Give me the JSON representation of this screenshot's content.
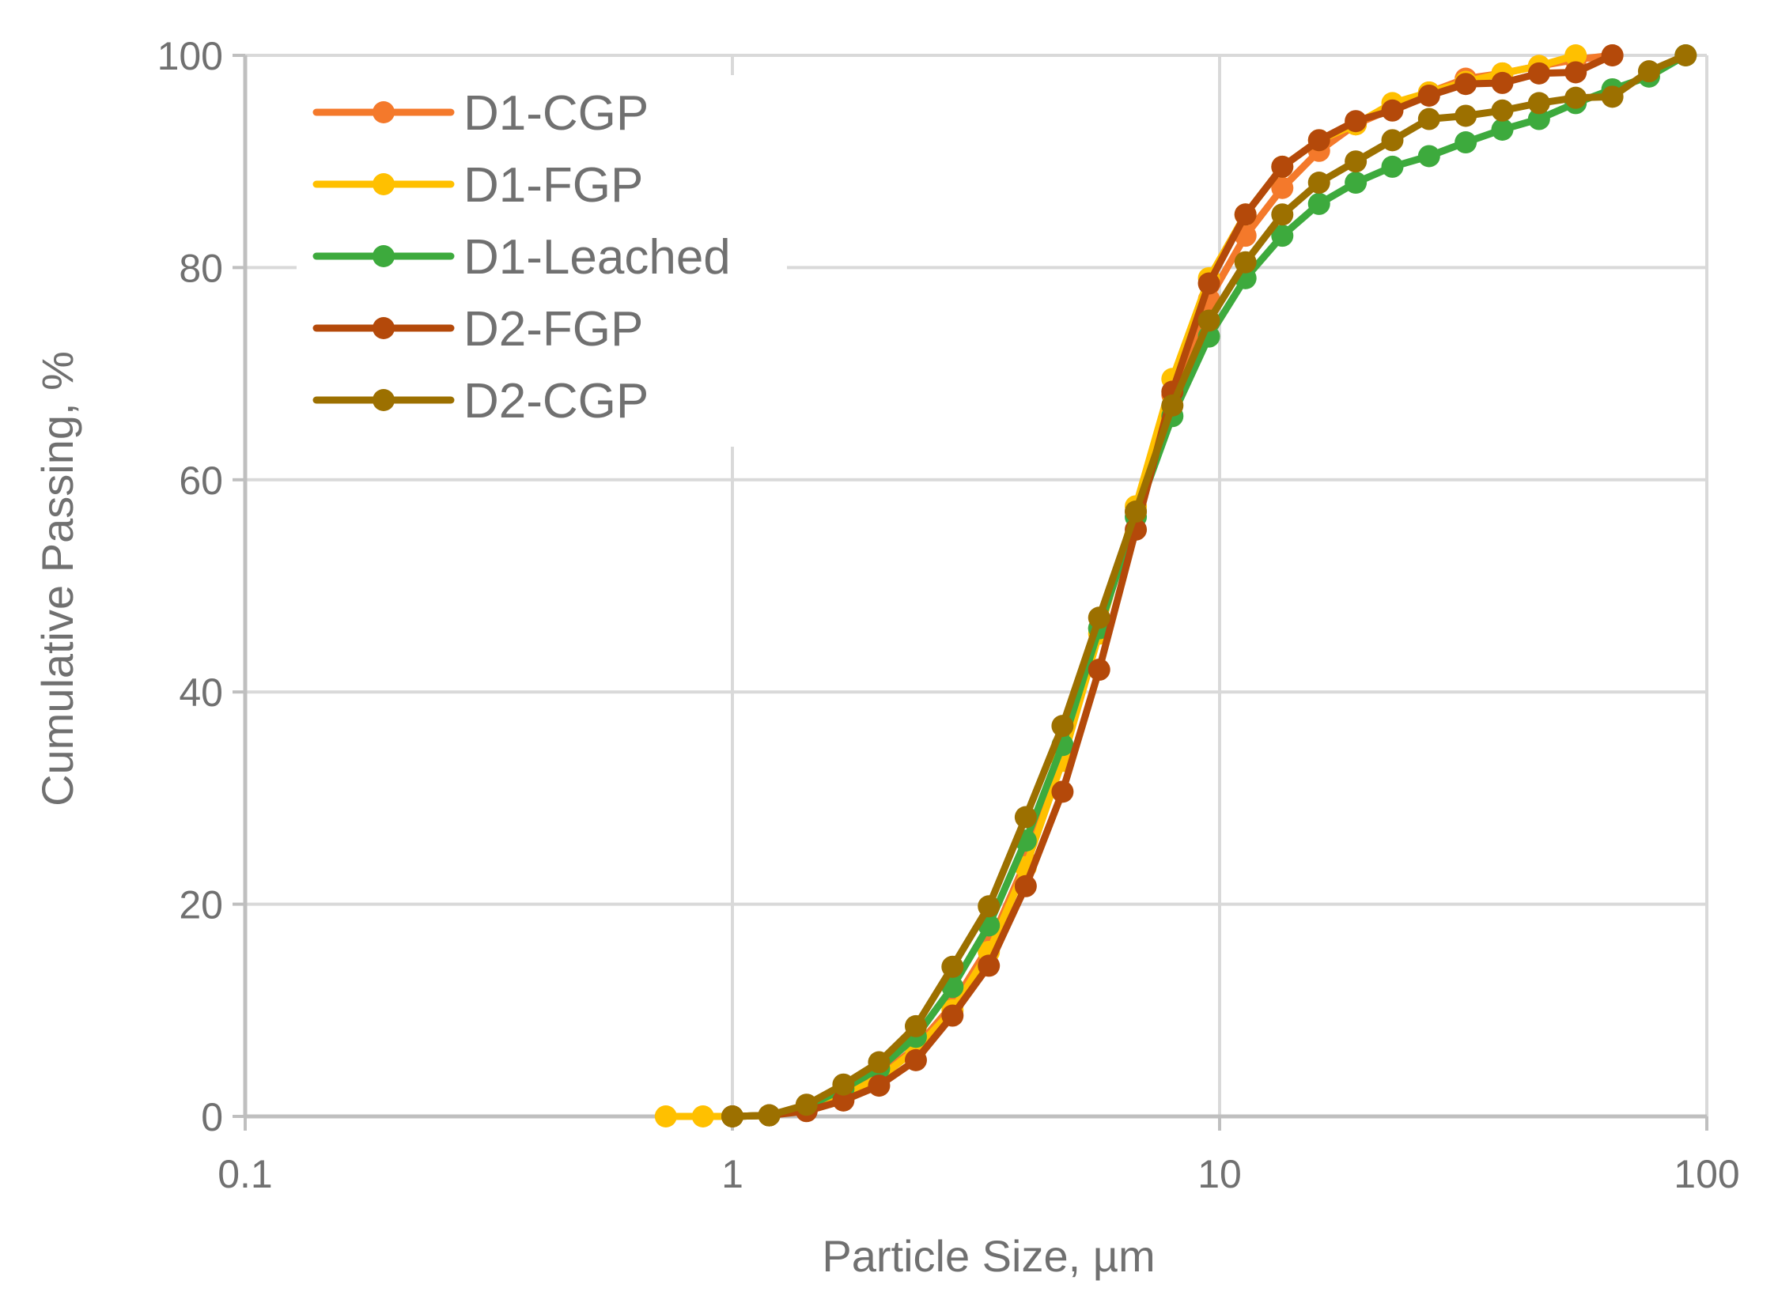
{
  "chart_data": {
    "type": "line",
    "xscale": "log",
    "xlabel": "Particle Size, µm",
    "ylabel": "Cumulative Passing, %",
    "xlim": [
      0.1,
      100
    ],
    "ylim": [
      0,
      100
    ],
    "xticks": [
      {
        "value": 0.1,
        "label": "0.1"
      },
      {
        "value": 1,
        "label": "1"
      },
      {
        "value": 10,
        "label": "10"
      },
      {
        "value": 100,
        "label": "100"
      }
    ],
    "yticks": [
      {
        "value": 0,
        "label": "0"
      },
      {
        "value": 20,
        "label": "20"
      },
      {
        "value": 40,
        "label": "40"
      },
      {
        "value": 60,
        "label": "60"
      },
      {
        "value": 80,
        "label": "80"
      },
      {
        "value": 100,
        "label": "100"
      }
    ],
    "grid": true,
    "legend_position": "top-left",
    "series": [
      {
        "name": "D1-CGP",
        "color": "#F4792B",
        "x": [
          1.0,
          1.19,
          1.42,
          1.69,
          2.0,
          2.38,
          2.83,
          3.36,
          4.0,
          4.76,
          5.66,
          6.73,
          8.0,
          9.51,
          11.3,
          13.45,
          16.0,
          19.03,
          22.63,
          26.91,
          32.0,
          38.05,
          45.25,
          53.81,
          64.0
        ],
        "y": [
          0,
          0.1,
          0.6,
          2.0,
          3.8,
          6.5,
          10.5,
          16.0,
          24.0,
          34.0,
          46.0,
          57.0,
          68.0,
          77.0,
          83.0,
          87.5,
          91.0,
          93.5,
          95.0,
          96.5,
          97.8,
          98.3,
          99.0,
          99.6,
          100
        ]
      },
      {
        "name": "D1-FGP",
        "color": "#FFC000",
        "x": [
          0.73,
          0.87,
          1.0,
          1.19,
          1.42,
          1.69,
          2.0,
          2.38,
          2.83,
          3.36,
          4.0,
          4.76,
          5.66,
          6.73,
          8.0,
          9.51,
          11.3,
          13.45,
          16.0,
          19.03,
          22.63,
          26.91,
          32.0,
          38.05,
          45.25,
          53.81
        ],
        "y": [
          0,
          0,
          0,
          0.1,
          0.6,
          2.0,
          3.6,
          6.3,
          10.0,
          15.5,
          23.5,
          33.5,
          45.5,
          57.5,
          69.5,
          79.0,
          85.0,
          89.5,
          92.0,
          93.5,
          95.5,
          96.5,
          97.5,
          98.3,
          99.0,
          100
        ]
      },
      {
        "name": "D1-Leached",
        "color": "#3DAA3D",
        "x": [
          1.0,
          1.19,
          1.42,
          1.69,
          2.0,
          2.38,
          2.83,
          3.36,
          4.0,
          4.76,
          5.66,
          6.73,
          8.0,
          9.51,
          11.3,
          13.45,
          16.0,
          19.03,
          22.63,
          26.91,
          32.0,
          38.05,
          45.25,
          53.81,
          64.0,
          76.1,
          90.5
        ],
        "y": [
          0,
          0.1,
          0.9,
          2.6,
          4.5,
          7.5,
          12.2,
          18.0,
          26.0,
          35.0,
          46.0,
          56.5,
          66.0,
          73.5,
          79.0,
          83.0,
          86.0,
          88.0,
          89.5,
          90.5,
          91.8,
          93.0,
          94.0,
          95.5,
          96.8,
          98.0,
          100
        ]
      },
      {
        "name": "D2-FGP",
        "color": "#B4490A",
        "x": [
          1.0,
          1.19,
          1.42,
          1.69,
          2.0,
          2.38,
          2.83,
          3.36,
          4.0,
          4.76,
          5.66,
          6.73,
          8.0,
          9.51,
          11.3,
          13.45,
          16.0,
          19.03,
          22.63,
          26.91,
          32.0,
          38.05,
          45.25,
          53.81,
          64.0
        ],
        "y": [
          0,
          0.1,
          0.5,
          1.5,
          2.9,
          5.3,
          9.5,
          14.2,
          21.7,
          30.6,
          42.1,
          55.3,
          68.3,
          78.5,
          85.0,
          89.5,
          92.0,
          93.8,
          94.8,
          96.2,
          97.3,
          97.4,
          98.3,
          98.4,
          100
        ]
      },
      {
        "name": "D2-CGP",
        "color": "#9C7000",
        "x": [
          1.0,
          1.19,
          1.42,
          1.69,
          2.0,
          2.38,
          2.83,
          3.36,
          4.0,
          4.76,
          5.66,
          6.73,
          8.0,
          9.51,
          11.3,
          13.45,
          16.0,
          19.03,
          22.63,
          26.91,
          32.0,
          38.05,
          45.25,
          53.81,
          64.0,
          76.1,
          90.5
        ],
        "y": [
          0,
          0.1,
          1.1,
          3.0,
          5.1,
          8.5,
          14.1,
          19.8,
          28.2,
          36.8,
          47.0,
          57.0,
          67.0,
          75.0,
          80.5,
          85.0,
          88.0,
          90.0,
          92.0,
          94.0,
          94.3,
          94.8,
          95.5,
          96.0,
          96.1,
          98.5,
          100
        ]
      }
    ]
  }
}
